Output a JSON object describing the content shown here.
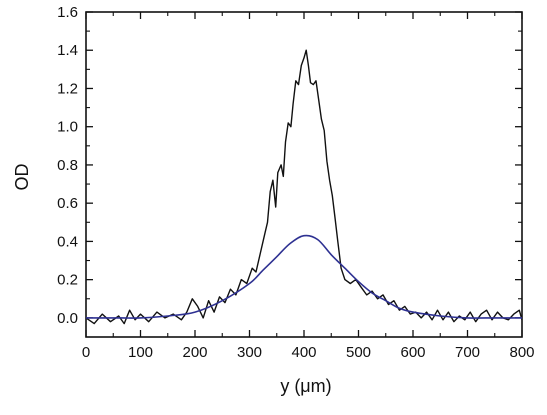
{
  "chart_data": {
    "type": "line",
    "title": "",
    "xlabel": "y (μm)",
    "ylabel": "OD",
    "xlim": [
      0,
      800
    ],
    "ylim": [
      -0.1,
      1.6
    ],
    "x_ticks": [
      "0",
      "100",
      "200",
      "300",
      "400",
      "500",
      "600",
      "700",
      "800"
    ],
    "y_ticks": [
      "0.0",
      "0.2",
      "0.4",
      "0.6",
      "0.8",
      "1.0",
      "1.2",
      "1.4",
      "1.6"
    ],
    "grid": false,
    "legend": "none",
    "series": [
      {
        "color": "#111111",
        "style": "noisy-measured",
        "points": [
          [
            0,
            0.0
          ],
          [
            15,
            -0.03
          ],
          [
            30,
            0.02
          ],
          [
            45,
            -0.02
          ],
          [
            60,
            0.01
          ],
          [
            70,
            -0.03
          ],
          [
            80,
            0.04
          ],
          [
            90,
            -0.01
          ],
          [
            100,
            0.02
          ],
          [
            115,
            -0.02
          ],
          [
            130,
            0.03
          ],
          [
            145,
            0.0
          ],
          [
            160,
            0.02
          ],
          [
            175,
            -0.01
          ],
          [
            185,
            0.03
          ],
          [
            195,
            0.1
          ],
          [
            205,
            0.06
          ],
          [
            215,
            0.0
          ],
          [
            225,
            0.09
          ],
          [
            235,
            0.03
          ],
          [
            245,
            0.11
          ],
          [
            255,
            0.08
          ],
          [
            265,
            0.15
          ],
          [
            275,
            0.12
          ],
          [
            285,
            0.2
          ],
          [
            295,
            0.18
          ],
          [
            305,
            0.26
          ],
          [
            312,
            0.24
          ],
          [
            320,
            0.34
          ],
          [
            328,
            0.44
          ],
          [
            333,
            0.5
          ],
          [
            338,
            0.66
          ],
          [
            343,
            0.72
          ],
          [
            348,
            0.58
          ],
          [
            352,
            0.76
          ],
          [
            358,
            0.8
          ],
          [
            362,
            0.74
          ],
          [
            366,
            0.92
          ],
          [
            371,
            1.02
          ],
          [
            376,
            1.0
          ],
          [
            380,
            1.12
          ],
          [
            385,
            1.24
          ],
          [
            390,
            1.22
          ],
          [
            395,
            1.32
          ],
          [
            400,
            1.36
          ],
          [
            404,
            1.4
          ],
          [
            408,
            1.32
          ],
          [
            412,
            1.23
          ],
          [
            417,
            1.22
          ],
          [
            422,
            1.24
          ],
          [
            427,
            1.14
          ],
          [
            432,
            1.04
          ],
          [
            437,
            0.98
          ],
          [
            442,
            0.82
          ],
          [
            447,
            0.72
          ],
          [
            452,
            0.64
          ],
          [
            457,
            0.52
          ],
          [
            462,
            0.4
          ],
          [
            468,
            0.26
          ],
          [
            475,
            0.2
          ],
          [
            485,
            0.18
          ],
          [
            495,
            0.2
          ],
          [
            505,
            0.16
          ],
          [
            515,
            0.12
          ],
          [
            525,
            0.14
          ],
          [
            535,
            0.1
          ],
          [
            545,
            0.12
          ],
          [
            555,
            0.07
          ],
          [
            565,
            0.09
          ],
          [
            575,
            0.04
          ],
          [
            585,
            0.06
          ],
          [
            595,
            0.02
          ],
          [
            605,
            0.03
          ],
          [
            615,
            0.0
          ],
          [
            625,
            0.03
          ],
          [
            635,
            -0.01
          ],
          [
            645,
            0.04
          ],
          [
            655,
            -0.01
          ],
          [
            665,
            0.03
          ],
          [
            675,
            -0.02
          ],
          [
            685,
            0.01
          ],
          [
            695,
            -0.01
          ],
          [
            705,
            0.03
          ],
          [
            715,
            -0.02
          ],
          [
            725,
            0.02
          ],
          [
            735,
            0.04
          ],
          [
            745,
            -0.01
          ],
          [
            755,
            0.03
          ],
          [
            765,
            0.0
          ],
          [
            775,
            -0.01
          ],
          [
            785,
            0.02
          ],
          [
            795,
            0.04
          ],
          [
            800,
            -0.01
          ]
        ]
      },
      {
        "color": "#2e3192",
        "style": "gaussian-fit",
        "points": [
          [
            0,
            0.0
          ],
          [
            50,
            0.0
          ],
          [
            100,
            0.0
          ],
          [
            150,
            0.01
          ],
          [
            200,
            0.03
          ],
          [
            250,
            0.09
          ],
          [
            300,
            0.18
          ],
          [
            325,
            0.25
          ],
          [
            350,
            0.32
          ],
          [
            375,
            0.39
          ],
          [
            400,
            0.43
          ],
          [
            425,
            0.41
          ],
          [
            450,
            0.33
          ],
          [
            475,
            0.26
          ],
          [
            500,
            0.19
          ],
          [
            525,
            0.13
          ],
          [
            550,
            0.09
          ],
          [
            575,
            0.05
          ],
          [
            600,
            0.03
          ],
          [
            650,
            0.01
          ],
          [
            700,
            0.0
          ],
          [
            750,
            0.0
          ],
          [
            800,
            0.0
          ]
        ]
      }
    ]
  }
}
